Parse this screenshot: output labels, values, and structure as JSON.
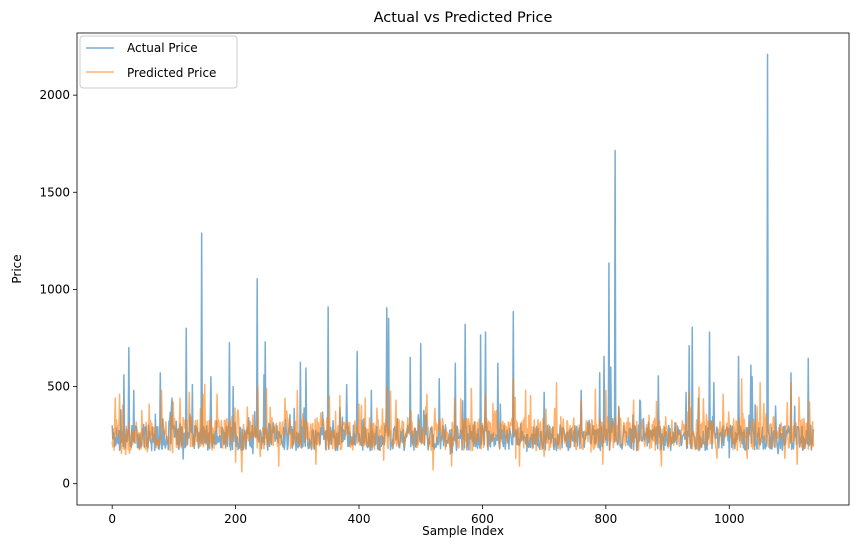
{
  "chart_data": {
    "type": "line",
    "title": "Actual vs Predicted Price",
    "xlabel": "Sample Index",
    "ylabel": "Price",
    "xlim": [
      -57,
      1194
    ],
    "ylim": [
      -110,
      2320
    ],
    "xticks": [
      0,
      200,
      400,
      600,
      800,
      1000
    ],
    "yticks": [
      0,
      500,
      1000,
      1500,
      2000
    ],
    "grid": false,
    "legend_position": "top-left",
    "n_points": 1138,
    "series": [
      {
        "name": "Actual Price",
        "color": "#1f77b4",
        "opacity": 0.6,
        "baseline": 235,
        "spread": 65,
        "seed": 17,
        "peaks": [
          [
            0,
            300
          ],
          [
            14,
            380
          ],
          [
            19,
            560
          ],
          [
            27,
            700
          ],
          [
            35,
            480
          ],
          [
            78,
            570
          ],
          [
            97,
            440
          ],
          [
            120,
            800
          ],
          [
            130,
            510
          ],
          [
            145,
            1290
          ],
          [
            160,
            550
          ],
          [
            190,
            725
          ],
          [
            196,
            500
          ],
          [
            235,
            1055
          ],
          [
            246,
            560
          ],
          [
            248,
            730
          ],
          [
            305,
            625
          ],
          [
            314,
            595
          ],
          [
            350,
            910
          ],
          [
            380,
            510
          ],
          [
            397,
            680
          ],
          [
            420,
            480
          ],
          [
            445,
            905
          ],
          [
            448,
            850
          ],
          [
            483,
            650
          ],
          [
            500,
            720
          ],
          [
            530,
            540
          ],
          [
            556,
            620
          ],
          [
            572,
            820
          ],
          [
            597,
            765
          ],
          [
            605,
            780
          ],
          [
            625,
            620
          ],
          [
            650,
            885
          ],
          [
            700,
            470
          ],
          [
            760,
            480
          ],
          [
            790,
            570
          ],
          [
            797,
            655
          ],
          [
            805,
            1135
          ],
          [
            808,
            600
          ],
          [
            815,
            1715
          ],
          [
            855,
            430
          ],
          [
            885,
            555
          ],
          [
            930,
            470
          ],
          [
            935,
            710
          ],
          [
            940,
            805
          ],
          [
            950,
            440
          ],
          [
            968,
            780
          ],
          [
            975,
            520
          ],
          [
            1015,
            655
          ],
          [
            1035,
            610
          ],
          [
            1037,
            550
          ],
          [
            1062,
            2210
          ],
          [
            1075,
            400
          ],
          [
            1100,
            570
          ],
          [
            1128,
            645
          ]
        ]
      },
      {
        "name": "Predicted Price",
        "color": "#ff7f0e",
        "opacity": 0.6,
        "baseline": 255,
        "spread": 85,
        "seed": 91,
        "peaks": [
          [
            5,
            440
          ],
          [
            12,
            460
          ],
          [
            60,
            410
          ],
          [
            80,
            480
          ],
          [
            110,
            440
          ],
          [
            125,
            470
          ],
          [
            170,
            460
          ],
          [
            236,
            500
          ],
          [
            250,
            490
          ],
          [
            280,
            440
          ],
          [
            300,
            480
          ],
          [
            330,
            480
          ],
          [
            352,
            450
          ],
          [
            410,
            440
          ],
          [
            445,
            500
          ],
          [
            460,
            430
          ],
          [
            510,
            460
          ],
          [
            555,
            440
          ],
          [
            582,
            490
          ],
          [
            605,
            460
          ],
          [
            650,
            540
          ],
          [
            670,
            480
          ],
          [
            720,
            520
          ],
          [
            760,
            430
          ],
          [
            800,
            480
          ],
          [
            845,
            430
          ],
          [
            890,
            420
          ],
          [
            935,
            470
          ],
          [
            990,
            460
          ],
          [
            1020,
            540
          ],
          [
            1050,
            520
          ],
          [
            1090,
            500
          ],
          [
            1100,
            520
          ],
          [
            1130,
            420
          ]
        ],
        "dips": [
          [
            22,
            150
          ],
          [
            200,
            110
          ],
          [
            210,
            60
          ],
          [
            240,
            140
          ],
          [
            270,
            90
          ],
          [
            330,
            100
          ],
          [
            440,
            120
          ],
          [
            520,
            70
          ],
          [
            550,
            90
          ],
          [
            660,
            90
          ],
          [
            700,
            140
          ],
          [
            795,
            100
          ],
          [
            890,
            90
          ],
          [
            980,
            130
          ],
          [
            1090,
            130
          ],
          [
            1110,
            100
          ]
        ]
      }
    ]
  }
}
